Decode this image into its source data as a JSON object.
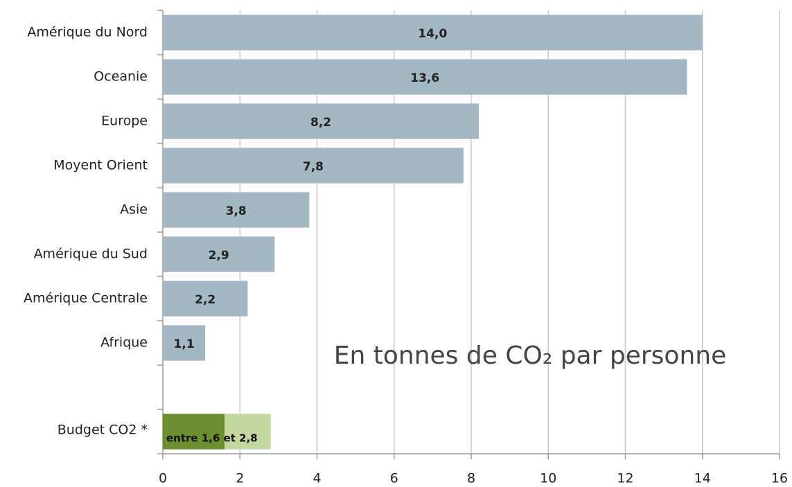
{
  "chart_data": {
    "type": "bar",
    "orientation": "horizontal",
    "categories": [
      "Amérique du Nord",
      "Oceanie",
      "Europe",
      "Moyent Orient",
      "Asie",
      "Amérique du Sud",
      "Amérique Centrale",
      "Afrique"
    ],
    "values": [
      14.0,
      13.6,
      8.2,
      7.8,
      3.8,
      2.9,
      2.2,
      1.1
    ],
    "value_labels": [
      "14,0",
      "13,6",
      "8,2",
      "7,8",
      "3,8",
      "2,9",
      "2,2",
      "1,1"
    ],
    "color": "#a3b8c2",
    "budget": {
      "category": "Budget CO2 *",
      "low": 1.6,
      "high": 2.8,
      "label": "entre 1,6 et 2,8",
      "low_color": "#6b8e2e",
      "high_color": "#c3d79f"
    },
    "annotation": "En tonnes de CO₂ par personne",
    "xlim": [
      0,
      16
    ],
    "xticks": [
      0,
      2,
      4,
      6,
      8,
      10,
      12,
      14,
      16
    ],
    "grid": true
  }
}
